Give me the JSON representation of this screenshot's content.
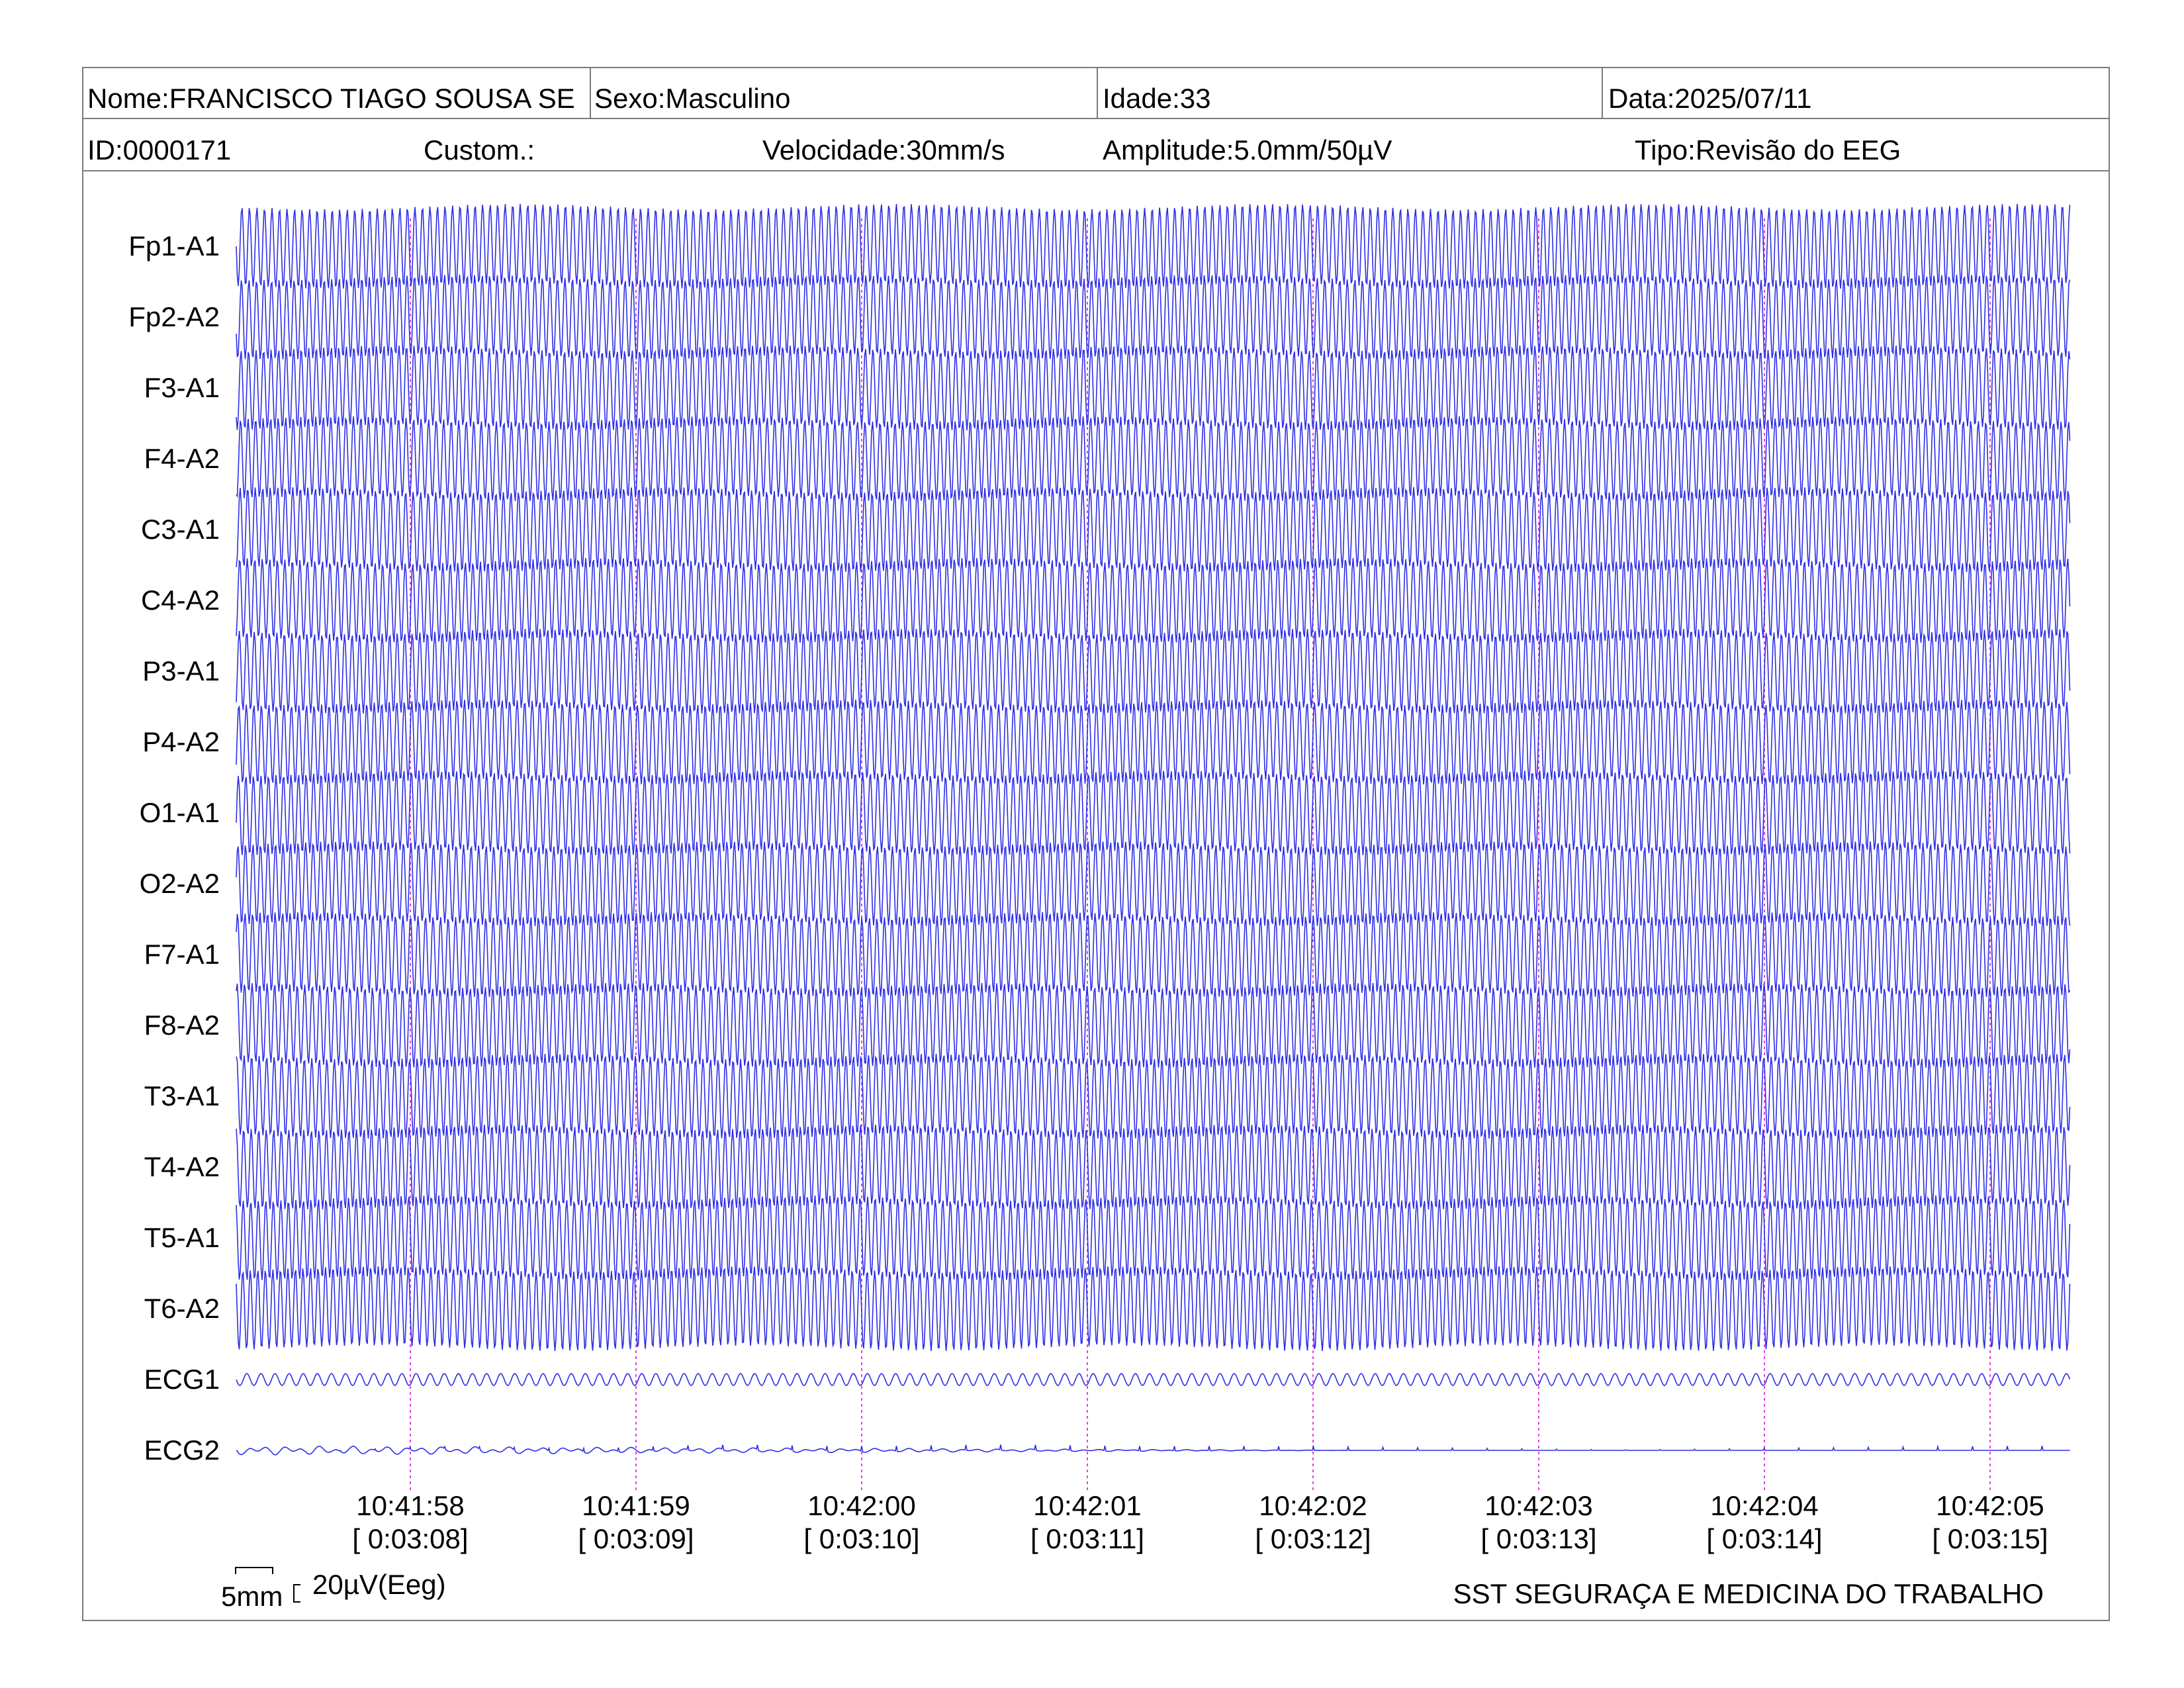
{
  "header": {
    "name": "Nome:FRANCISCO TIAGO SOUSA SE",
    "sex": "Sexo:Masculino",
    "age": "Idade:33",
    "date": "Data:2025/07/11",
    "id": "ID:0000171",
    "custom": "Custom.:",
    "speed": "Velocidade:30mm/s",
    "amplitude": "Amplitude:5.0mm/50µV",
    "type": "Tipo:Revisão do EEG"
  },
  "chart_data": {
    "type": "line",
    "channels": [
      "Fp1-A1",
      "Fp2-A2",
      "F3-A1",
      "F4-A2",
      "C3-A1",
      "C4-A2",
      "P3-A1",
      "P4-A2",
      "O1-A1",
      "O2-A2",
      "F7-A1",
      "F8-A2",
      "T3-A1",
      "T4-A2",
      "T5-A1",
      "T6-A2",
      "ECG1",
      "ECG2"
    ],
    "time_marks": [
      {
        "clock": "10:41:58",
        "elapsed": "[ 0:03:08]"
      },
      {
        "clock": "10:41:59",
        "elapsed": "[ 0:03:09]"
      },
      {
        "clock": "10:42:00",
        "elapsed": "[ 0:03:10]"
      },
      {
        "clock": "10:42:01",
        "elapsed": "[ 0:03:11]"
      },
      {
        "clock": "10:42:02",
        "elapsed": "[ 0:03:12]"
      },
      {
        "clock": "10:42:03",
        "elapsed": "[ 0:03:13]"
      },
      {
        "clock": "10:42:04",
        "elapsed": "[ 0:03:14]"
      },
      {
        "clock": "10:42:05",
        "elapsed": "[ 0:03:15]"
      }
    ],
    "eeg_wave_cycles_per_second": 30,
    "trace_color": "#2e2ee6",
    "marker_color": "#e040e0"
  },
  "scale": {
    "time_label": "5mm",
    "amp_label": "20µV(Eeg)"
  },
  "footer": "SST SEGURAÇA E MEDICINA DO TRABALHO"
}
